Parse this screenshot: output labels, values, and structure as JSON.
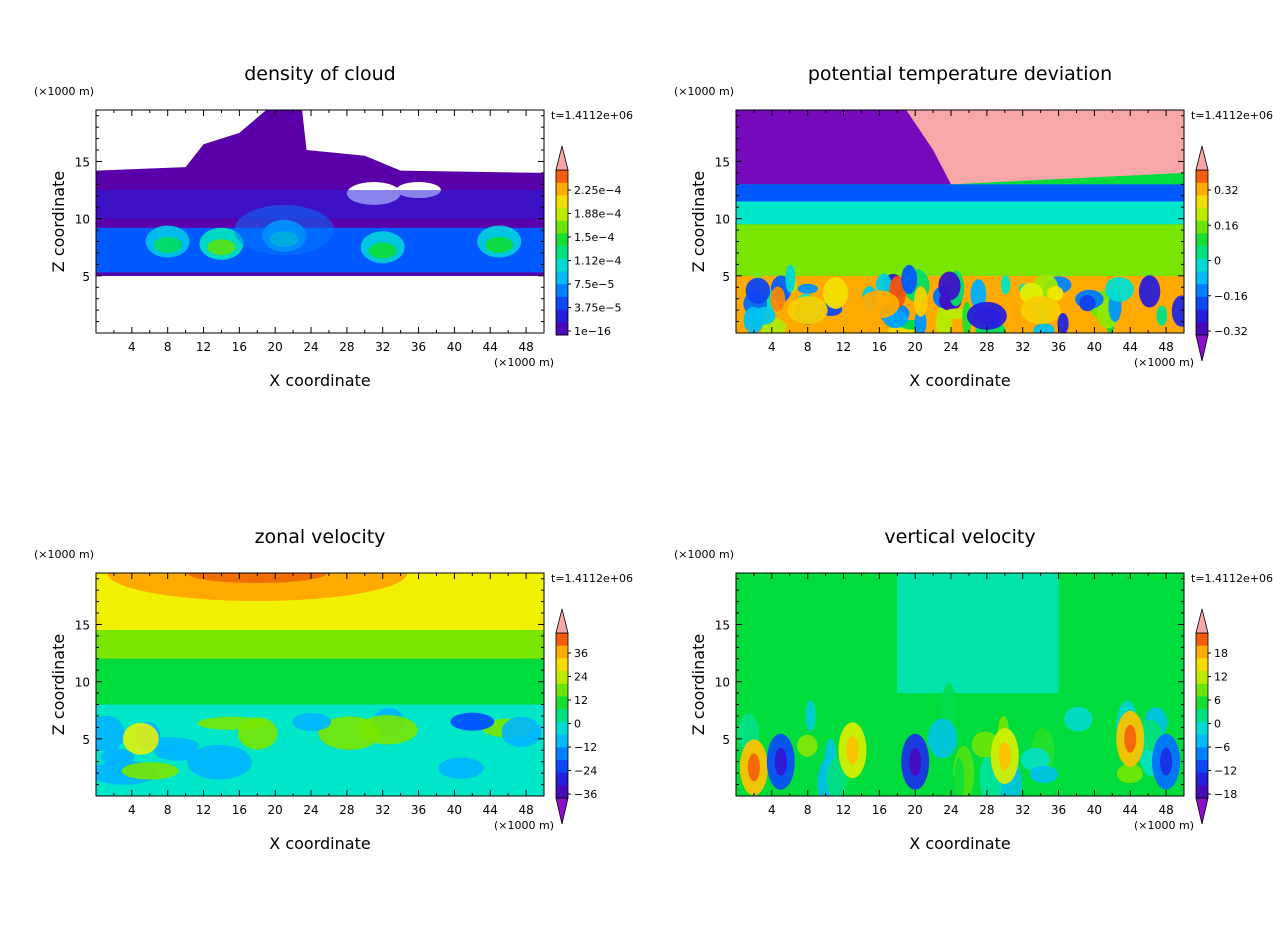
{
  "chart_data": [
    {
      "type": "heatmap",
      "title": "density of cloud",
      "xlabel": "X coordinate",
      "ylabel": "Z coordinate",
      "x_unit": "(×1000 m)",
      "y_unit": "(×1000 m)",
      "time_label": "t=1.4112e+06",
      "xlim": [
        0,
        50
      ],
      "ylim": [
        0,
        19.5
      ],
      "x_ticks": [
        4,
        8,
        12,
        16,
        20,
        24,
        28,
        32,
        36,
        40,
        44,
        48
      ],
      "y_ticks": [
        5,
        10,
        15
      ],
      "colorbar_labels": [
        "2.25e−4",
        "1.88e−4",
        "1.5e−4",
        "1.12e−4",
        "7.5e−5",
        "3.75e−5",
        "1e−16"
      ],
      "colorbar_arrow_top": true,
      "colorbar_arrow_bottom": false,
      "features": [
        {
          "x": 8,
          "z": 8.0,
          "value": 0.00015
        },
        {
          "x": 14,
          "z": 7.8,
          "value": 0.00018
        },
        {
          "x": 21,
          "z": 8.5,
          "value": 0.00013
        },
        {
          "x": 32,
          "z": 7.5,
          "value": 0.00016
        },
        {
          "x": 45,
          "z": 8.0,
          "value": 0.00016
        }
      ]
    },
    {
      "type": "heatmap",
      "title": "potential temperature deviation",
      "xlabel": "X coordinate",
      "ylabel": "Z coordinate",
      "x_unit": "(×1000 m)",
      "y_unit": "(×1000 m)",
      "time_label": "t=1.4112e+06",
      "xlim": [
        0,
        50
      ],
      "ylim": [
        0,
        19.5
      ],
      "x_ticks": [
        4,
        8,
        12,
        16,
        20,
        24,
        28,
        32,
        36,
        40,
        44,
        48
      ],
      "y_ticks": [
        5,
        10,
        15
      ],
      "colorbar_labels": [
        "0.32",
        "0.16",
        "0",
        "−0.16",
        "−0.32"
      ],
      "colorbar_arrow_top": true,
      "colorbar_arrow_bottom": true,
      "features": [
        {
          "x": 15,
          "z": 17,
          "value": -0.4
        },
        {
          "x": 38,
          "z": 17,
          "value": 0.4
        },
        {
          "x": 28,
          "z": 1.5,
          "value": -0.35
        },
        {
          "x": 16,
          "z": 2.5,
          "value": 0.35
        },
        {
          "x": 34,
          "z": 2.0,
          "value": 0.3
        },
        {
          "x": 8,
          "z": 2.0,
          "value": 0.3
        }
      ]
    },
    {
      "type": "heatmap",
      "title": "zonal velocity",
      "xlabel": "X coordinate",
      "ylabel": "Z coordinate",
      "x_unit": "(×1000 m)",
      "y_unit": "(×1000 m)",
      "time_label": "t=1.4112e+06",
      "xlim": [
        0,
        50
      ],
      "ylim": [
        0,
        19.5
      ],
      "x_ticks": [
        4,
        8,
        12,
        16,
        20,
        24,
        28,
        32,
        36,
        40,
        44,
        48
      ],
      "y_ticks": [
        5,
        10,
        15
      ],
      "colorbar_labels": [
        "36",
        "24",
        "12",
        "0",
        "−12",
        "−24",
        "−36"
      ],
      "colorbar_arrow_top": true,
      "colorbar_arrow_bottom": true,
      "features": [
        {
          "x": 18,
          "z": 19,
          "value": 30
        },
        {
          "x": 42,
          "z": 6.5,
          "value": -18
        },
        {
          "x": 26,
          "z": 4,
          "value": -10
        },
        {
          "x": 5,
          "z": 5,
          "value": 8
        }
      ]
    },
    {
      "type": "heatmap",
      "title": "vertical velocity",
      "xlabel": "X coordinate",
      "ylabel": "Z coordinate",
      "x_unit": "(×1000 m)",
      "y_unit": "(×1000 m)",
      "time_label": "t=1.4112e+06",
      "xlim": [
        0,
        50
      ],
      "ylim": [
        0,
        19.5
      ],
      "x_ticks": [
        4,
        8,
        12,
        16,
        20,
        24,
        28,
        32,
        36,
        40,
        44,
        48
      ],
      "y_ticks": [
        5,
        10,
        15
      ],
      "colorbar_labels": [
        "18",
        "12",
        "6",
        "0",
        "−6",
        "−12",
        "−18"
      ],
      "colorbar_arrow_top": true,
      "colorbar_arrow_bottom": true,
      "features": [
        {
          "x": 2,
          "z": 2.5,
          "value": 14
        },
        {
          "x": 5,
          "z": 3,
          "value": -12
        },
        {
          "x": 13,
          "z": 4,
          "value": 10
        },
        {
          "x": 20,
          "z": 3,
          "value": -14
        },
        {
          "x": 30,
          "z": 3.5,
          "value": 10
        },
        {
          "x": 44,
          "z": 5,
          "value": 14
        },
        {
          "x": 48,
          "z": 3,
          "value": -10
        }
      ]
    }
  ]
}
